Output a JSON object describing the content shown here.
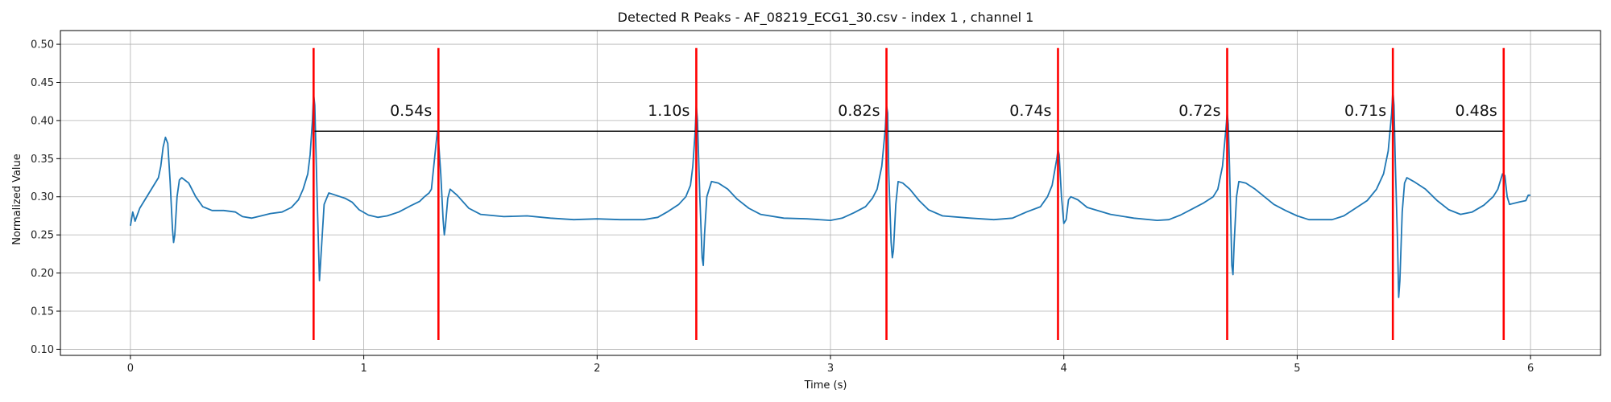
{
  "chart_data": {
    "type": "line",
    "title": "Detected R Peaks - AF_08219_ECG1_30.csv - index 1 , channel 1",
    "xlabel": "Time (s)",
    "ylabel": "Normalized Value",
    "xlim": [
      -0.3,
      6.3
    ],
    "ylim": [
      0.092,
      0.518
    ],
    "grid": true,
    "x_ticks": [
      0,
      1,
      2,
      3,
      4,
      5,
      6
    ],
    "x_tick_labels": [
      "0",
      "1",
      "2",
      "3",
      "4",
      "5",
      "6"
    ],
    "y_ticks": [
      0.1,
      0.15,
      0.2,
      0.25,
      0.3,
      0.35,
      0.4,
      0.45,
      0.5
    ],
    "y_tick_labels": [
      "0.10",
      "0.15",
      "0.20",
      "0.25",
      "0.30",
      "0.35",
      "0.40",
      "0.45",
      "0.50"
    ],
    "signal": {
      "color": "#1f77b4",
      "points": [
        [
          0.0,
          0.262
        ],
        [
          0.01,
          0.28
        ],
        [
          0.02,
          0.268
        ],
        [
          0.04,
          0.285
        ],
        [
          0.06,
          0.295
        ],
        [
          0.08,
          0.305
        ],
        [
          0.1,
          0.315
        ],
        [
          0.12,
          0.325
        ],
        [
          0.13,
          0.34
        ],
        [
          0.14,
          0.365
        ],
        [
          0.15,
          0.378
        ],
        [
          0.16,
          0.37
        ],
        [
          0.17,
          0.32
        ],
        [
          0.18,
          0.258
        ],
        [
          0.185,
          0.24
        ],
        [
          0.19,
          0.25
        ],
        [
          0.2,
          0.3
        ],
        [
          0.21,
          0.322
        ],
        [
          0.22,
          0.325
        ],
        [
          0.25,
          0.318
        ],
        [
          0.28,
          0.3
        ],
        [
          0.31,
          0.287
        ],
        [
          0.35,
          0.282
        ],
        [
          0.4,
          0.282
        ],
        [
          0.45,
          0.28
        ],
        [
          0.48,
          0.274
        ],
        [
          0.52,
          0.272
        ],
        [
          0.56,
          0.275
        ],
        [
          0.6,
          0.278
        ],
        [
          0.65,
          0.28
        ],
        [
          0.69,
          0.286
        ],
        [
          0.72,
          0.296
        ],
        [
          0.74,
          0.31
        ],
        [
          0.76,
          0.33
        ],
        [
          0.77,
          0.355
        ],
        [
          0.78,
          0.4
        ],
        [
          0.785,
          0.435
        ],
        [
          0.79,
          0.42
        ],
        [
          0.8,
          0.3
        ],
        [
          0.81,
          0.19
        ],
        [
          0.82,
          0.24
        ],
        [
          0.83,
          0.29
        ],
        [
          0.85,
          0.305
        ],
        [
          0.88,
          0.302
        ],
        [
          0.92,
          0.298
        ],
        [
          0.95,
          0.293
        ],
        [
          0.98,
          0.283
        ],
        [
          1.02,
          0.276
        ],
        [
          1.06,
          0.273
        ],
        [
          1.1,
          0.275
        ],
        [
          1.15,
          0.28
        ],
        [
          1.2,
          0.288
        ],
        [
          1.24,
          0.294
        ],
        [
          1.26,
          0.3
        ],
        [
          1.28,
          0.305
        ],
        [
          1.29,
          0.31
        ],
        [
          1.3,
          0.34
        ],
        [
          1.31,
          0.37
        ],
        [
          1.315,
          0.385
        ],
        [
          1.32,
          0.375
        ],
        [
          1.33,
          0.33
        ],
        [
          1.34,
          0.27
        ],
        [
          1.345,
          0.25
        ],
        [
          1.35,
          0.262
        ],
        [
          1.36,
          0.298
        ],
        [
          1.37,
          0.31
        ],
        [
          1.4,
          0.302
        ],
        [
          1.45,
          0.285
        ],
        [
          1.5,
          0.277
        ],
        [
          1.6,
          0.274
        ],
        [
          1.7,
          0.275
        ],
        [
          1.8,
          0.272
        ],
        [
          1.9,
          0.27
        ],
        [
          2.0,
          0.271
        ],
        [
          2.1,
          0.27
        ],
        [
          2.2,
          0.27
        ],
        [
          2.26,
          0.273
        ],
        [
          2.3,
          0.28
        ],
        [
          2.35,
          0.29
        ],
        [
          2.38,
          0.3
        ],
        [
          2.4,
          0.315
        ],
        [
          2.41,
          0.34
        ],
        [
          2.42,
          0.385
        ],
        [
          2.425,
          0.42
        ],
        [
          2.43,
          0.4
        ],
        [
          2.44,
          0.3
        ],
        [
          2.45,
          0.22
        ],
        [
          2.455,
          0.21
        ],
        [
          2.46,
          0.25
        ],
        [
          2.47,
          0.3
        ],
        [
          2.49,
          0.32
        ],
        [
          2.52,
          0.318
        ],
        [
          2.56,
          0.31
        ],
        [
          2.6,
          0.297
        ],
        [
          2.65,
          0.285
        ],
        [
          2.7,
          0.277
        ],
        [
          2.8,
          0.272
        ],
        [
          2.9,
          0.271
        ],
        [
          3.0,
          0.269
        ],
        [
          3.05,
          0.272
        ],
        [
          3.1,
          0.279
        ],
        [
          3.15,
          0.287
        ],
        [
          3.18,
          0.298
        ],
        [
          3.2,
          0.31
        ],
        [
          3.22,
          0.34
        ],
        [
          3.235,
          0.39
        ],
        [
          3.24,
          0.42
        ],
        [
          3.245,
          0.41
        ],
        [
          3.25,
          0.33
        ],
        [
          3.26,
          0.24
        ],
        [
          3.265,
          0.22
        ],
        [
          3.27,
          0.23
        ],
        [
          3.28,
          0.29
        ],
        [
          3.29,
          0.32
        ],
        [
          3.31,
          0.318
        ],
        [
          3.34,
          0.31
        ],
        [
          3.38,
          0.295
        ],
        [
          3.42,
          0.283
        ],
        [
          3.48,
          0.275
        ],
        [
          3.6,
          0.272
        ],
        [
          3.7,
          0.27
        ],
        [
          3.78,
          0.272
        ],
        [
          3.84,
          0.28
        ],
        [
          3.9,
          0.287
        ],
        [
          3.93,
          0.3
        ],
        [
          3.95,
          0.315
        ],
        [
          3.97,
          0.35
        ],
        [
          3.975,
          0.362
        ],
        [
          3.98,
          0.355
        ],
        [
          3.99,
          0.3
        ],
        [
          4.0,
          0.265
        ],
        [
          4.01,
          0.27
        ],
        [
          4.02,
          0.296
        ],
        [
          4.03,
          0.3
        ],
        [
          4.06,
          0.296
        ],
        [
          4.1,
          0.286
        ],
        [
          4.2,
          0.277
        ],
        [
          4.3,
          0.272
        ],
        [
          4.4,
          0.269
        ],
        [
          4.45,
          0.27
        ],
        [
          4.5,
          0.276
        ],
        [
          4.55,
          0.284
        ],
        [
          4.6,
          0.292
        ],
        [
          4.64,
          0.3
        ],
        [
          4.66,
          0.31
        ],
        [
          4.68,
          0.34
        ],
        [
          4.695,
          0.39
        ],
        [
          4.7,
          0.41
        ],
        [
          4.705,
          0.395
        ],
        [
          4.71,
          0.34
        ],
        [
          4.72,
          0.21
        ],
        [
          4.725,
          0.198
        ],
        [
          4.73,
          0.24
        ],
        [
          4.74,
          0.3
        ],
        [
          4.75,
          0.32
        ],
        [
          4.78,
          0.318
        ],
        [
          4.82,
          0.31
        ],
        [
          4.86,
          0.3
        ],
        [
          4.9,
          0.29
        ],
        [
          4.95,
          0.282
        ],
        [
          5.0,
          0.275
        ],
        [
          5.05,
          0.27
        ],
        [
          5.15,
          0.27
        ],
        [
          5.2,
          0.275
        ],
        [
          5.25,
          0.285
        ],
        [
          5.3,
          0.295
        ],
        [
          5.34,
          0.31
        ],
        [
          5.37,
          0.33
        ],
        [
          5.39,
          0.36
        ],
        [
          5.405,
          0.41
        ],
        [
          5.41,
          0.44
        ],
        [
          5.415,
          0.42
        ],
        [
          5.42,
          0.35
        ],
        [
          5.43,
          0.24
        ],
        [
          5.435,
          0.168
        ],
        [
          5.44,
          0.19
        ],
        [
          5.45,
          0.28
        ],
        [
          5.46,
          0.318
        ],
        [
          5.47,
          0.325
        ],
        [
          5.5,
          0.32
        ],
        [
          5.55,
          0.31
        ],
        [
          5.6,
          0.295
        ],
        [
          5.65,
          0.283
        ],
        [
          5.7,
          0.277
        ],
        [
          5.75,
          0.28
        ],
        [
          5.8,
          0.289
        ],
        [
          5.84,
          0.3
        ],
        [
          5.86,
          0.31
        ],
        [
          5.88,
          0.33
        ],
        [
          5.89,
          0.328
        ],
        [
          5.9,
          0.3
        ],
        [
          5.91,
          0.29
        ],
        [
          5.95,
          0.293
        ],
        [
          5.98,
          0.295
        ],
        [
          5.99,
          0.302
        ],
        [
          6.0,
          0.302
        ]
      ]
    },
    "r_peaks": {
      "color": "#ff0000",
      "x": [
        0.785,
        1.32,
        2.425,
        3.24,
        3.975,
        4.7,
        5.41,
        5.885
      ],
      "y_range": [
        0.112,
        0.495
      ]
    },
    "rr_intervals": {
      "baseline_y": 0.386,
      "marker_top_y": 0.403,
      "marker_bottom_y": 0.372,
      "labels": [
        "0.54s",
        "1.10s",
        "0.82s",
        "0.74s",
        "0.72s",
        "0.71s",
        "0.48s"
      ]
    }
  }
}
